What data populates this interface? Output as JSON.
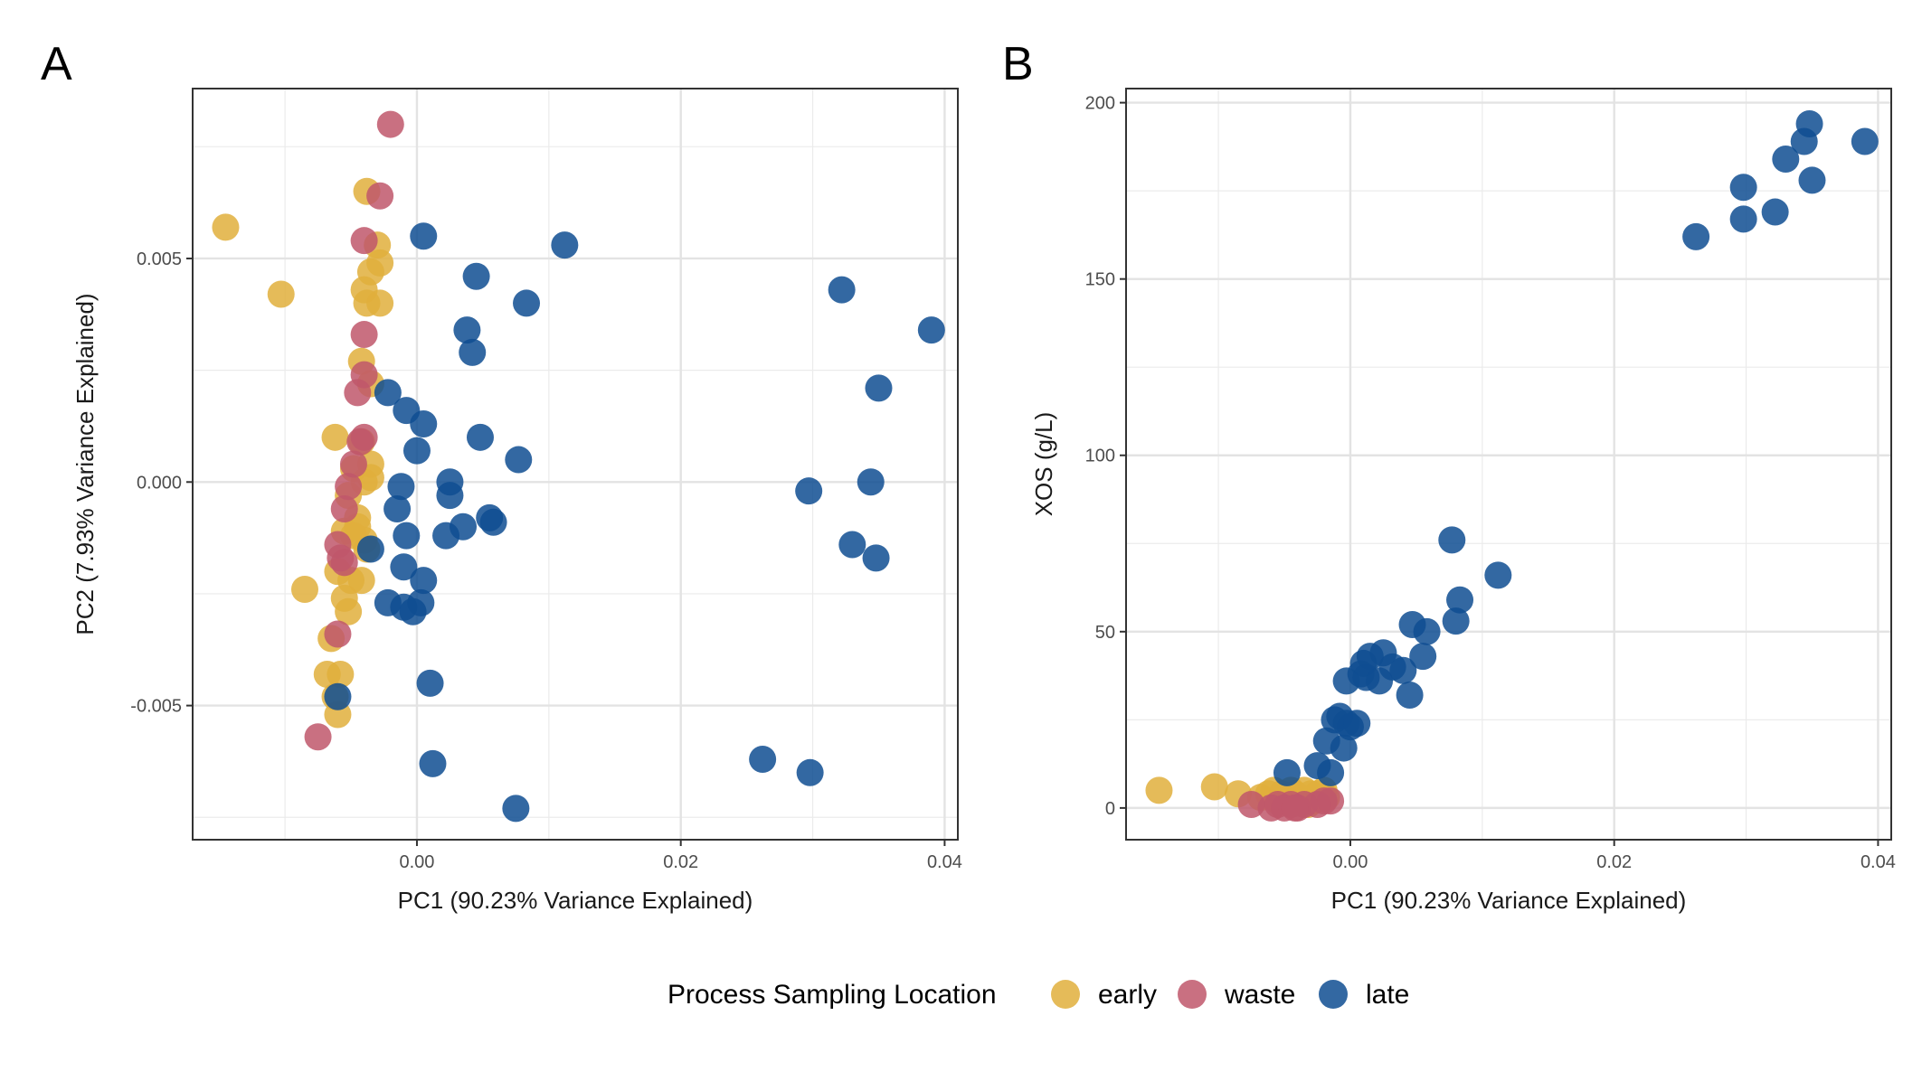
{
  "legend": {
    "title": "Process Sampling Location",
    "entries": [
      {
        "key": "early",
        "label": "early",
        "color": "#E1AF3C"
      },
      {
        "key": "waste",
        "label": "waste",
        "color": "#C0576B"
      },
      {
        "key": "late",
        "label": "late",
        "color": "#0F4D92"
      }
    ]
  },
  "chart_data": [
    {
      "type": "scatter",
      "tag": "A",
      "xlabel": "PC1 (90.23% Variance Explained)",
      "ylabel": "PC2 (7.93% Variance Explained)",
      "xlim": [
        -0.017,
        0.041
      ],
      "ylim": [
        -0.008,
        0.0088
      ],
      "x_ticks": [
        0.0,
        0.02,
        0.04
      ],
      "x_tick_labels": [
        "0.00",
        "0.02",
        "0.04"
      ],
      "y_ticks": [
        -0.005,
        0.0,
        0.005
      ],
      "y_tick_labels": [
        "-0.005",
        "0.000",
        "0.005"
      ],
      "grid": true,
      "series": [
        {
          "name": "early",
          "color": "#E1AF3C",
          "points": [
            [
              -0.0145,
              0.0057
            ],
            [
              -0.0103,
              0.0042
            ],
            [
              -0.0038,
              0.0065
            ],
            [
              -0.003,
              0.0053
            ],
            [
              -0.0028,
              0.0049
            ],
            [
              -0.0035,
              0.0047
            ],
            [
              -0.004,
              0.0043
            ],
            [
              -0.0038,
              0.004
            ],
            [
              -0.0028,
              0.004
            ],
            [
              -0.0042,
              0.0027
            ],
            [
              -0.0035,
              0.0022
            ],
            [
              -0.0062,
              0.001
            ],
            [
              -0.0042,
              0.0009
            ],
            [
              -0.0035,
              0.0004
            ],
            [
              -0.0048,
              0.0003
            ],
            [
              -0.004,
              0.0
            ],
            [
              -0.0052,
              -0.0003
            ],
            [
              -0.0045,
              -0.0008
            ],
            [
              -0.0055,
              -0.0011
            ],
            [
              -0.0048,
              -0.0012
            ],
            [
              -0.004,
              -0.0013
            ],
            [
              -0.0038,
              -0.0015
            ],
            [
              -0.006,
              -0.002
            ],
            [
              -0.005,
              -0.0022
            ],
            [
              -0.0042,
              -0.0022
            ],
            [
              -0.0085,
              -0.0024
            ],
            [
              -0.0055,
              -0.0026
            ],
            [
              -0.0052,
              -0.0029
            ],
            [
              -0.0065,
              -0.0035
            ],
            [
              -0.0068,
              -0.0043
            ],
            [
              -0.0058,
              -0.0043
            ],
            [
              -0.0062,
              -0.0048
            ],
            [
              -0.006,
              -0.0052
            ],
            [
              -0.0045,
              -0.001
            ],
            [
              -0.0035,
              0.0001
            ]
          ]
        },
        {
          "name": "waste",
          "color": "#C0576B",
          "points": [
            [
              -0.002,
              0.008
            ],
            [
              -0.0028,
              0.0064
            ],
            [
              -0.004,
              0.0054
            ],
            [
              -0.004,
              0.0033
            ],
            [
              -0.004,
              0.0024
            ],
            [
              -0.0045,
              0.002
            ],
            [
              -0.004,
              0.001
            ],
            [
              -0.0043,
              0.0009
            ],
            [
              -0.0048,
              0.0004
            ],
            [
              -0.0052,
              -0.0001
            ],
            [
              -0.0055,
              -0.0006
            ],
            [
              -0.006,
              -0.0014
            ],
            [
              -0.0058,
              -0.0017
            ],
            [
              -0.0055,
              -0.0018
            ],
            [
              -0.006,
              -0.0034
            ],
            [
              -0.0075,
              -0.0057
            ]
          ]
        },
        {
          "name": "late",
          "color": "#0F4D92",
          "points": [
            [
              0.0005,
              0.0055
            ],
            [
              0.0112,
              0.0053
            ],
            [
              0.0045,
              0.0046
            ],
            [
              0.0083,
              0.004
            ],
            [
              0.0038,
              0.0034
            ],
            [
              0.0042,
              0.0029
            ],
            [
              -0.0022,
              0.002
            ],
            [
              -0.0008,
              0.0016
            ],
            [
              0.0005,
              0.0013
            ],
            [
              0.0048,
              0.001
            ],
            [
              0.0,
              0.0007
            ],
            [
              0.0077,
              0.0005
            ],
            [
              0.0025,
              0.0
            ],
            [
              -0.0012,
              -0.0001
            ],
            [
              0.0025,
              -0.0003
            ],
            [
              -0.0015,
              -0.0006
            ],
            [
              0.0055,
              -0.0008
            ],
            [
              0.0058,
              -0.0009
            ],
            [
              0.0035,
              -0.001
            ],
            [
              -0.0008,
              -0.0012
            ],
            [
              0.0022,
              -0.0012
            ],
            [
              -0.0035,
              -0.0015
            ],
            [
              -0.001,
              -0.0019
            ],
            [
              0.0005,
              -0.0022
            ],
            [
              -0.0022,
              -0.0027
            ],
            [
              -0.001,
              -0.0028
            ],
            [
              -0.0003,
              -0.0029
            ],
            [
              0.0003,
              -0.0027
            ],
            [
              0.001,
              -0.0045
            ],
            [
              -0.006,
              -0.0048
            ],
            [
              0.0012,
              -0.0063
            ],
            [
              0.0075,
              -0.0073
            ],
            [
              0.0322,
              0.0043
            ],
            [
              0.039,
              0.0034
            ],
            [
              0.035,
              0.0021
            ],
            [
              0.0297,
              -0.0002
            ],
            [
              0.0344,
              0.0
            ],
            [
              0.033,
              -0.0014
            ],
            [
              0.0348,
              -0.0017
            ],
            [
              0.0262,
              -0.0062
            ],
            [
              0.0298,
              -0.0065
            ]
          ]
        }
      ]
    },
    {
      "type": "scatter",
      "tag": "B",
      "xlabel": "PC1 (90.23% Variance Explained)",
      "ylabel": "XOS (g/L)",
      "xlim": [
        -0.017,
        0.041
      ],
      "ylim": [
        -9,
        204
      ],
      "x_ticks": [
        0.0,
        0.02,
        0.04
      ],
      "x_tick_labels": [
        "0.00",
        "0.02",
        "0.04"
      ],
      "y_ticks": [
        0,
        50,
        100,
        150,
        200
      ],
      "y_tick_labels": [
        "0",
        "50",
        "100",
        "150",
        "200"
      ],
      "grid": true,
      "series": [
        {
          "name": "early",
          "color": "#E1AF3C",
          "points": [
            [
              -0.0145,
              5
            ],
            [
              -0.0103,
              6
            ],
            [
              -0.0085,
              4
            ],
            [
              -0.0068,
              3
            ],
            [
              -0.0062,
              4
            ],
            [
              -0.0058,
              5
            ],
            [
              -0.0052,
              4
            ],
            [
              -0.0048,
              3
            ],
            [
              -0.0045,
              5
            ],
            [
              -0.0042,
              4
            ],
            [
              -0.004,
              2
            ],
            [
              -0.0038,
              3
            ],
            [
              -0.0035,
              5
            ],
            [
              -0.003,
              4
            ],
            [
              -0.0028,
              2
            ],
            [
              -0.0025,
              4
            ],
            [
              -0.0022,
              3
            ],
            [
              -0.002,
              5
            ],
            [
              -0.0018,
              3
            ],
            [
              -0.0045,
              2
            ],
            [
              -0.0055,
              2
            ],
            [
              -0.0032,
              1
            ]
          ]
        },
        {
          "name": "waste",
          "color": "#C0576B",
          "points": [
            [
              -0.0075,
              1
            ],
            [
              -0.006,
              0
            ],
            [
              -0.0055,
              1
            ],
            [
              -0.005,
              0
            ],
            [
              -0.0045,
              1
            ],
            [
              -0.004,
              0
            ],
            [
              -0.0035,
              1
            ],
            [
              -0.0025,
              1
            ],
            [
              -0.002,
              2
            ],
            [
              -0.0015,
              2
            ],
            [
              -0.0042,
              0
            ]
          ]
        },
        {
          "name": "late",
          "color": "#0F4D92",
          "points": [
            [
              -0.0048,
              10
            ],
            [
              -0.0025,
              12
            ],
            [
              -0.0015,
              10
            ],
            [
              -0.0018,
              19
            ],
            [
              -0.0012,
              25
            ],
            [
              -0.0008,
              26
            ],
            [
              -0.0005,
              17
            ],
            [
              -0.0003,
              24
            ],
            [
              0.0,
              23
            ],
            [
              0.0005,
              24
            ],
            [
              -0.0003,
              36
            ],
            [
              0.0008,
              38
            ],
            [
              0.001,
              41
            ],
            [
              0.0012,
              37
            ],
            [
              0.0015,
              43
            ],
            [
              0.0022,
              36
            ],
            [
              0.0025,
              44
            ],
            [
              0.0032,
              40
            ],
            [
              0.004,
              39
            ],
            [
              0.0045,
              32
            ],
            [
              0.0047,
              52
            ],
            [
              0.0055,
              43
            ],
            [
              0.0058,
              50
            ],
            [
              0.008,
              53
            ],
            [
              0.0083,
              59
            ],
            [
              0.0077,
              76
            ],
            [
              0.0112,
              66
            ],
            [
              0.0262,
              162
            ],
            [
              0.0298,
              167
            ],
            [
              0.0298,
              176
            ],
            [
              0.0322,
              169
            ],
            [
              0.033,
              184
            ],
            [
              0.0344,
              189
            ],
            [
              0.035,
              178
            ],
            [
              0.0348,
              194
            ],
            [
              0.039,
              189
            ]
          ]
        }
      ]
    }
  ]
}
